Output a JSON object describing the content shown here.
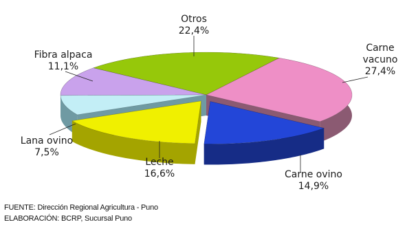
{
  "chart_data": {
    "type": "pie",
    "title": "",
    "slices": [
      {
        "label": "Carne vacuno",
        "pct_label": "27,4%",
        "value": 27.4,
        "color": "#ee8fc6",
        "side_color": "#8b5a72",
        "exploded": false
      },
      {
        "label": "Carne ovino",
        "pct_label": "14,9%",
        "value": 14.9,
        "color": "#2346d8",
        "side_color": "#162c86",
        "exploded": true
      },
      {
        "label": "Leche",
        "pct_label": "16,6%",
        "value": 16.6,
        "color": "#f0f000",
        "side_color": "#a4a400",
        "exploded": true
      },
      {
        "label": "Lana ovino",
        "pct_label": "7,5%",
        "value": 7.5,
        "color": "#c3eef6",
        "side_color": "#6f9aa3",
        "exploded": false
      },
      {
        "label": "Fibra alpaca",
        "pct_label": "11,1%",
        "value": 11.1,
        "color": "#c9a2ec",
        "side_color": "#72568c",
        "exploded": false
      },
      {
        "label": "Otros",
        "pct_label": "22,4%",
        "value": 22.4,
        "color": "#96c80a",
        "side_color": "#5a7a06",
        "exploded": false
      }
    ]
  },
  "footer": {
    "source": "FUENTE: Dirección Regional Agricultura - Puno",
    "credit": "ELABORACIÓN: BCRP, Sucursal Puno"
  }
}
